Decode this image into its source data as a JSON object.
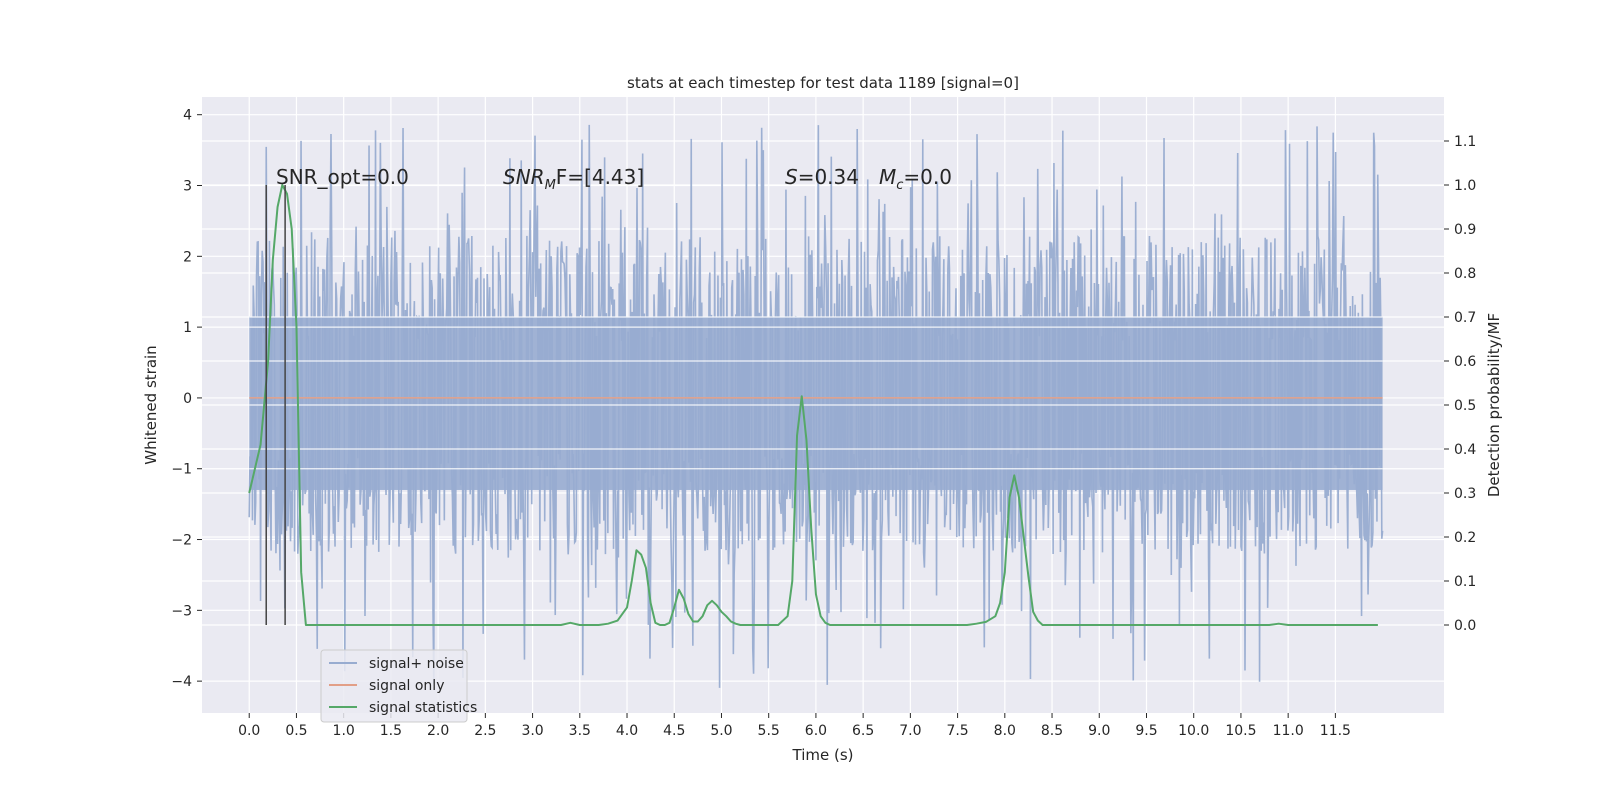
{
  "chart_data": {
    "type": "line",
    "title": "stats at each timestep for test data 1189 [signal=0]",
    "xlabel": "Time (s)",
    "ylabel_left": "Whitened strain",
    "ylabel_right": "Detection probability/MF",
    "xlim": [
      -0.5,
      12.65
    ],
    "ylim_left": [
      -4.45,
      4.25
    ],
    "ylim_right": [
      -0.2,
      1.2
    ],
    "grid": true,
    "x_ticks": [
      "0.0",
      "0.5",
      "1.0",
      "1.5",
      "2.0",
      "2.5",
      "3.0",
      "3.5",
      "4.0",
      "4.5",
      "5.0",
      "5.5",
      "6.0",
      "6.5",
      "7.0",
      "7.5",
      "8.0",
      "8.5",
      "9.0",
      "9.5",
      "10.0",
      "10.5",
      "11.0",
      "11.5"
    ],
    "y_ticks_left": [
      "4",
      "3",
      "2",
      "1",
      "0",
      "−1",
      "−2",
      "−3",
      "−4"
    ],
    "y_ticks_right": [
      "1.1",
      "1.0",
      "0.9",
      "0.8",
      "0.7",
      "0.6",
      "0.5",
      "0.4",
      "0.3",
      "0.2",
      "0.1",
      "0.0"
    ],
    "annotations": {
      "snr_opt": "SNR_opt=0.0",
      "snr_mf_base": "SNR",
      "snr_mf_sub": "M",
      "snr_mf_rest": "F=[4.43]",
      "s_base": "S",
      "s_rest": "=0.34",
      "mc_base": "M",
      "mc_sub": "c",
      "mc_rest": "=0.0"
    },
    "legend": {
      "placement": "lower-left",
      "entries": [
        "signal+ noise",
        "signal only",
        "signal statistics"
      ]
    },
    "series": [
      {
        "name": "signal+ noise",
        "color": "#98acd0",
        "x_range": [
          0.0,
          12.0
        ],
        "band_left_units": [
          -1.3,
          1.15
        ],
        "peak_range_left_units": [
          -4.1,
          3.9
        ]
      },
      {
        "name": "signal only",
        "color": "#e29f87",
        "x": [
          0.0,
          12.0
        ],
        "y": [
          0.0,
          0.0
        ]
      },
      {
        "name": "signal statistics",
        "color": "#55a868",
        "x": [
          0.0,
          0.12,
          0.2,
          0.25,
          0.3,
          0.35,
          0.4,
          0.45,
          0.5,
          0.55,
          0.6,
          0.7,
          0.8,
          1.0,
          1.5,
          2.0,
          2.5,
          3.0,
          3.3,
          3.4,
          3.5,
          3.6,
          3.7,
          3.8,
          3.9,
          4.0,
          4.05,
          4.1,
          4.15,
          4.2,
          4.25,
          4.3,
          4.35,
          4.4,
          4.45,
          4.5,
          4.55,
          4.6,
          4.65,
          4.7,
          4.75,
          4.8,
          4.85,
          4.9,
          4.95,
          5.0,
          5.05,
          5.1,
          5.15,
          5.2,
          5.3,
          5.4,
          5.5,
          5.6,
          5.7,
          5.75,
          5.8,
          5.85,
          5.9,
          5.95,
          6.0,
          6.05,
          6.1,
          6.15,
          6.2,
          6.3,
          6.5,
          7.0,
          7.5,
          7.6,
          7.7,
          7.8,
          7.9,
          7.95,
          8.0,
          8.05,
          8.1,
          8.15,
          8.2,
          8.25,
          8.3,
          8.35,
          8.4,
          8.45,
          8.5,
          8.6,
          9.0,
          10.0,
          10.8,
          10.9,
          11.0,
          11.2,
          11.5,
          11.95
        ],
        "y": [
          0.3,
          0.41,
          0.6,
          0.83,
          0.95,
          1.0,
          0.98,
          0.9,
          0.68,
          0.12,
          0.0,
          0.0,
          0.0,
          0.0,
          0.0,
          0.0,
          0.0,
          0.0,
          0.0,
          0.005,
          0.0,
          0.0,
          0.0,
          0.003,
          0.01,
          0.04,
          0.1,
          0.17,
          0.16,
          0.13,
          0.05,
          0.005,
          0.0,
          0.0,
          0.005,
          0.04,
          0.08,
          0.06,
          0.025,
          0.008,
          0.008,
          0.02,
          0.045,
          0.055,
          0.045,
          0.03,
          0.02,
          0.008,
          0.003,
          0.0,
          0.0,
          0.0,
          0.0,
          0.0,
          0.02,
          0.1,
          0.43,
          0.52,
          0.42,
          0.22,
          0.07,
          0.02,
          0.005,
          0.0,
          0.0,
          0.0,
          0.0,
          0.0,
          0.0,
          0.0,
          0.003,
          0.007,
          0.02,
          0.05,
          0.12,
          0.29,
          0.34,
          0.29,
          0.2,
          0.11,
          0.03,
          0.01,
          0.0,
          0.0,
          0.0,
          0.0,
          0.0,
          0.0,
          0.0,
          0.003,
          0.0,
          0.0,
          0.0,
          0.0
        ]
      },
      {
        "name": "vertical markers",
        "color": "#444444",
        "x": [
          0.18,
          0.38
        ],
        "y_right": [
          0.0,
          1.0
        ]
      }
    ]
  },
  "colors": {
    "axes_bg": "#eaeaf2",
    "grid": "#ffffff",
    "text": "#262626"
  }
}
